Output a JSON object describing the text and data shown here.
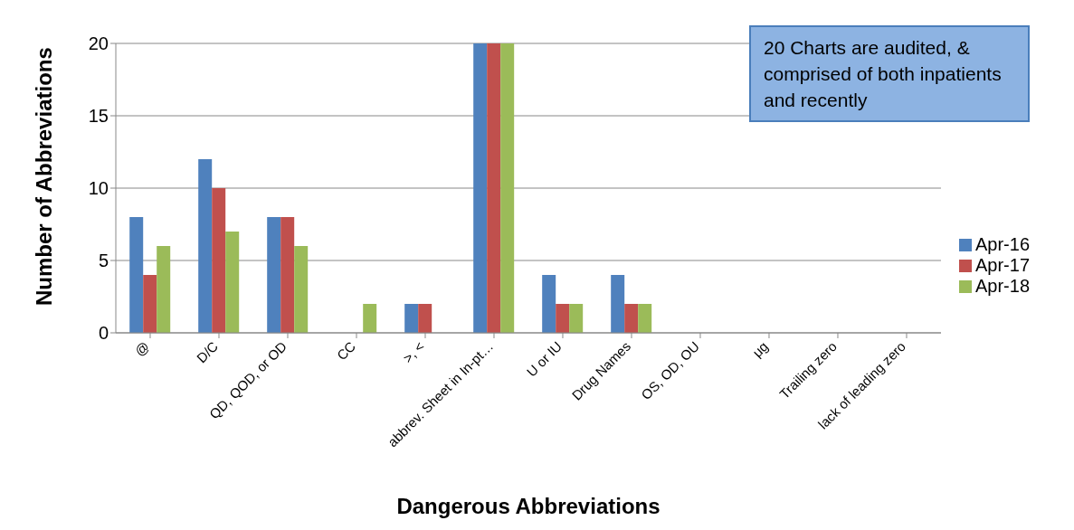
{
  "chart_data": {
    "type": "bar",
    "xlabel": "Dangerous Abbreviations",
    "ylabel": "Number of Abbreviations",
    "categories": [
      "@",
      "D/C",
      "QD, QOD, or OD",
      "CC",
      ">, <",
      "abbrev. Sheet in In-pt…",
      "U or IU",
      "Drug Names",
      "OS, OD, OU",
      "μg",
      "Trailing zero",
      "lack of leading zero"
    ],
    "series": [
      {
        "name": "Apr-16",
        "color": "#4f81bd",
        "values": [
          8,
          12,
          8,
          0,
          2,
          20,
          4,
          4,
          0,
          0,
          0,
          0
        ]
      },
      {
        "name": "Apr-17",
        "color": "#c0504d",
        "values": [
          4,
          10,
          8,
          0,
          2,
          20,
          2,
          2,
          0,
          0,
          0,
          0
        ]
      },
      {
        "name": "Apr-18",
        "color": "#9bbb59",
        "values": [
          6,
          7,
          6,
          2,
          0,
          20,
          2,
          2,
          0,
          0,
          0,
          0
        ]
      }
    ],
    "ylim": [
      0,
      20
    ],
    "yticks": [
      0,
      5,
      10,
      15,
      20
    ],
    "grid": "y",
    "legend": "right",
    "annotations": [
      "20 Charts are audited, & comprised of both inpatients and recently"
    ]
  }
}
